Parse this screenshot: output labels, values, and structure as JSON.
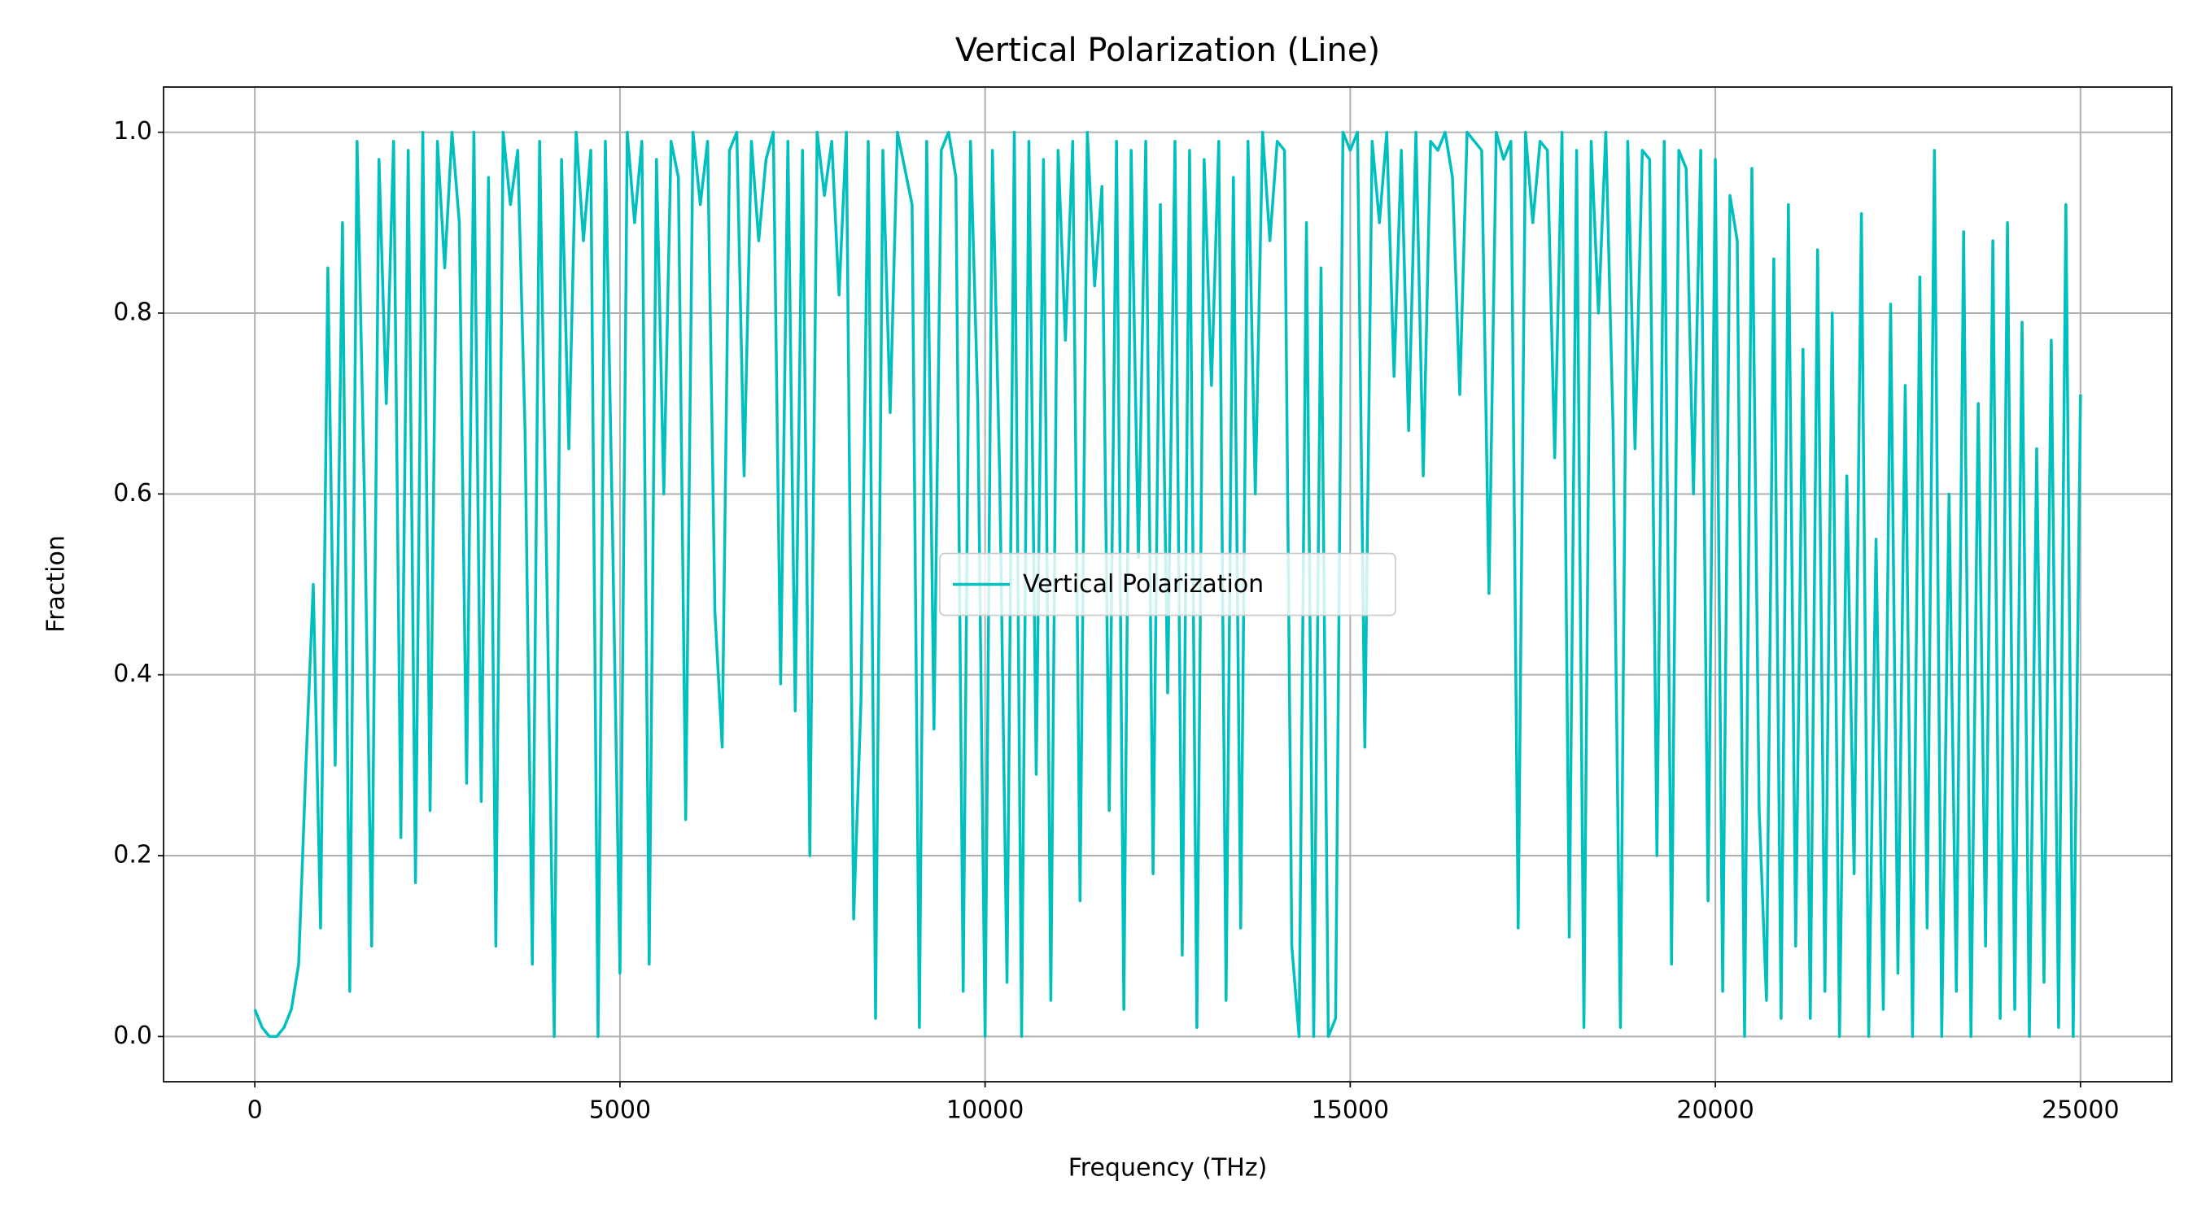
{
  "chart_data": {
    "type": "line",
    "title": "Vertical Polarization (Line)",
    "x_label": "Frequency (THz)",
    "y_label": "Fraction",
    "x": [
      0,
      100,
      200,
      300,
      400,
      500,
      600,
      700,
      800,
      900,
      1000,
      1100,
      1200,
      1300,
      1400,
      1500,
      1600,
      1700,
      1800,
      1900,
      2000,
      2100,
      2200,
      2300,
      2400,
      2500,
      2600,
      2700,
      2800,
      2900,
      3000,
      3100,
      3200,
      3300,
      3400,
      3500,
      3600,
      3700,
      3800,
      3900,
      4000,
      4100,
      4200,
      4300,
      4400,
      4500,
      4600,
      4700,
      4800,
      4900,
      5000,
      5100,
      5200,
      5300,
      5400,
      5500,
      5600,
      5700,
      5800,
      5900,
      6000,
      6100,
      6200,
      6300,
      6400,
      6500,
      6600,
      6700,
      6800,
      6900,
      7000,
      7100,
      7200,
      7300,
      7400,
      7500,
      7600,
      7700,
      7800,
      7900,
      8000,
      8100,
      8200,
      8300,
      8400,
      8500,
      8600,
      8700,
      8800,
      8900,
      9000,
      9100,
      9200,
      9300,
      9400,
      9500,
      9600,
      9700,
      9800,
      9900,
      10000,
      10100,
      10200,
      10300,
      10400,
      10500,
      10600,
      10700,
      10800,
      10900,
      11000,
      11100,
      11200,
      11300,
      11400,
      11500,
      11600,
      11700,
      11800,
      11900,
      12000,
      12100,
      12200,
      12300,
      12400,
      12500,
      12600,
      12700,
      12800,
      12900,
      13000,
      13100,
      13200,
      13300,
      13400,
      13500,
      13600,
      13700,
      13800,
      13900,
      14000,
      14100,
      14200,
      14300,
      14400,
      14500,
      14600,
      14700,
      14800,
      14900,
      15000,
      15100,
      15200,
      15300,
      15400,
      15500,
      15600,
      15700,
      15800,
      15900,
      16000,
      16100,
      16200,
      16300,
      16400,
      16500,
      16600,
      16700,
      16800,
      16900,
      17000,
      17100,
      17200,
      17300,
      17400,
      17500,
      17600,
      17700,
      17800,
      17900,
      18000,
      18100,
      18200,
      18300,
      18400,
      18500,
      18600,
      18700,
      18800,
      18900,
      19000,
      19100,
      19200,
      19300,
      19400,
      19500,
      19600,
      19700,
      19800,
      19900,
      20000,
      20100,
      20200,
      20300,
      20400,
      20500,
      20600,
      20700,
      20800,
      20900,
      21000,
      21100,
      21200,
      21300,
      21400,
      21500,
      21600,
      21700,
      21800,
      21900,
      22000,
      22100,
      22200,
      22300,
      22400,
      22500,
      22600,
      22700,
      22800,
      22900,
      23000,
      23100,
      23200,
      23300,
      23400,
      23500,
      23600,
      23700,
      23800,
      23900,
      24000,
      24100,
      24200,
      24300,
      24400,
      24500,
      24600,
      24700,
      24800,
      24900,
      25000
    ],
    "series": [
      {
        "name": "Vertical Polarization",
        "color": "#00bfbf",
        "values": [
          0.03,
          0.01,
          0.0,
          0.0,
          0.01,
          0.03,
          0.08,
          0.3,
          0.5,
          0.12,
          0.85,
          0.3,
          0.9,
          0.05,
          0.99,
          0.6,
          0.1,
          0.97,
          0.7,
          0.99,
          0.22,
          0.98,
          0.17,
          1.0,
          0.25,
          0.99,
          0.85,
          1.0,
          0.9,
          0.28,
          1.0,
          0.26,
          0.95,
          0.1,
          1.0,
          0.92,
          0.98,
          0.67,
          0.08,
          0.99,
          0.5,
          0.0,
          0.97,
          0.65,
          1.0,
          0.88,
          0.98,
          0.0,
          0.99,
          0.55,
          0.07,
          1.0,
          0.9,
          0.99,
          0.08,
          0.97,
          0.6,
          0.99,
          0.95,
          0.24,
          1.0,
          0.92,
          0.99,
          0.47,
          0.32,
          0.98,
          1.0,
          0.62,
          0.99,
          0.88,
          0.97,
          1.0,
          0.39,
          0.99,
          0.36,
          0.98,
          0.2,
          1.0,
          0.93,
          0.99,
          0.82,
          1.0,
          0.13,
          0.37,
          0.99,
          0.02,
          0.98,
          0.69,
          1.0,
          0.96,
          0.92,
          0.01,
          0.99,
          0.34,
          0.98,
          1.0,
          0.95,
          0.05,
          0.99,
          0.7,
          0.0,
          0.98,
          0.62,
          0.06,
          1.0,
          0.0,
          0.99,
          0.29,
          0.97,
          0.04,
          0.98,
          0.77,
          0.99,
          0.15,
          1.0,
          0.83,
          0.94,
          0.25,
          0.99,
          0.03,
          0.98,
          0.53,
          0.99,
          0.18,
          0.92,
          0.38,
          0.99,
          0.09,
          0.98,
          0.01,
          0.97,
          0.72,
          0.99,
          0.04,
          0.95,
          0.12,
          0.99,
          0.6,
          1.0,
          0.88,
          0.99,
          0.98,
          0.1,
          0.0,
          0.9,
          0.0,
          0.85,
          0.0,
          0.02,
          1.0,
          0.98,
          1.0,
          0.32,
          0.99,
          0.9,
          1.0,
          0.73,
          0.98,
          0.67,
          1.0,
          0.62,
          0.99,
          0.98,
          1.0,
          0.95,
          0.71,
          1.0,
          0.99,
          0.98,
          0.49,
          1.0,
          0.97,
          0.99,
          0.12,
          1.0,
          0.9,
          0.99,
          0.98,
          0.64,
          1.0,
          0.11,
          0.98,
          0.01,
          0.99,
          0.8,
          1.0,
          0.67,
          0.01,
          0.99,
          0.65,
          0.98,
          0.97,
          0.2,
          0.99,
          0.08,
          0.98,
          0.96,
          0.6,
          0.98,
          0.15,
          0.97,
          0.05,
          0.93,
          0.88,
          0.0,
          0.96,
          0.25,
          0.04,
          0.86,
          0.02,
          0.92,
          0.1,
          0.76,
          0.02,
          0.87,
          0.05,
          0.8,
          0.0,
          0.62,
          0.18,
          0.91,
          0.0,
          0.55,
          0.03,
          0.81,
          0.07,
          0.72,
          0.0,
          0.84,
          0.12,
          0.98,
          0.0,
          0.6,
          0.05,
          0.89,
          0.0,
          0.7,
          0.1,
          0.88,
          0.02,
          0.9,
          0.03,
          0.79,
          0.0,
          0.65,
          0.06,
          0.77,
          0.01,
          0.92,
          0.0,
          0.71
        ]
      }
    ],
    "xlim": [
      -1250,
      26250
    ],
    "xticks": [
      0,
      5000,
      10000,
      15000,
      20000,
      25000
    ],
    "ylim": [
      -0.05,
      1.05
    ],
    "yticks": [
      {
        "value": 0,
        "label": "0.0"
      },
      0.2,
      0.4,
      0.6,
      0.8,
      {
        "value": 1,
        "label": "1.0"
      }
    ],
    "grid": true,
    "legend": "center"
  }
}
